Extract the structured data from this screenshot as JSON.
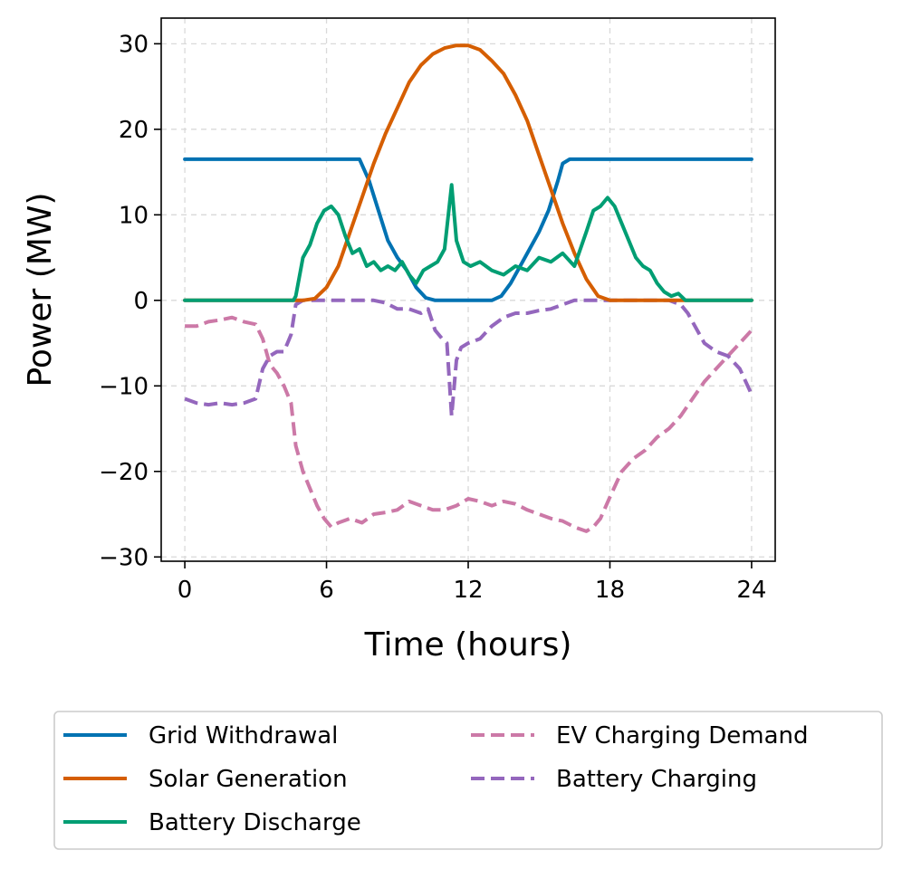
{
  "chart_data": {
    "type": "line",
    "title": "",
    "xlabel": "Time (hours)",
    "ylabel": "Power (MW)",
    "xlim": [
      -1,
      25
    ],
    "ylim": [
      -30.5,
      33
    ],
    "xticks": [
      0,
      6,
      12,
      18,
      24
    ],
    "yticks": [
      -30,
      -20,
      -10,
      0,
      10,
      20,
      30
    ],
    "xtick_labels": [
      "0",
      "6",
      "12",
      "18",
      "24"
    ],
    "ytick_labels": [
      "−30",
      "−20",
      "−10",
      "0",
      "10",
      "20",
      "30"
    ],
    "grid": true,
    "legend_position": "below",
    "series": [
      {
        "name": "Grid Withdrawal",
        "color": "#0072B2",
        "dash": "solid",
        "x": [
          0,
          7.4,
          7.8,
          8.2,
          8.6,
          9.0,
          9.4,
          9.8,
          10.2,
          10.6,
          11.0,
          11.5,
          12.0,
          12.5,
          13.0,
          13.4,
          13.8,
          14.2,
          14.6,
          15.0,
          15.4,
          15.8,
          16.0,
          16.3,
          24
        ],
        "y": [
          16.5,
          16.5,
          14.0,
          10.5,
          7.0,
          5.0,
          3.5,
          1.5,
          0.3,
          0,
          0,
          0,
          0,
          0,
          0,
          0.5,
          2.0,
          4.0,
          6.0,
          8.0,
          10.5,
          14.0,
          16.0,
          16.5,
          16.5
        ]
      },
      {
        "name": "Solar Generation",
        "color": "#D55E00",
        "dash": "solid",
        "x": [
          0,
          5.0,
          5.5,
          6.0,
          6.5,
          7.0,
          7.5,
          8.0,
          8.5,
          9.0,
          9.5,
          10.0,
          10.5,
          11.0,
          11.5,
          12.0,
          12.5,
          13.0,
          13.5,
          14.0,
          14.5,
          15.0,
          15.5,
          16.0,
          16.5,
          17.0,
          17.5,
          18.0,
          24
        ],
        "y": [
          0,
          0,
          0.2,
          1.5,
          4.0,
          8.0,
          12.0,
          16.0,
          19.5,
          22.5,
          25.5,
          27.5,
          28.8,
          29.5,
          29.8,
          29.8,
          29.3,
          28.0,
          26.5,
          24.0,
          21.0,
          17.0,
          13.0,
          9.0,
          5.5,
          2.5,
          0.5,
          0,
          0
        ]
      },
      {
        "name": "Battery Discharge",
        "color": "#009E73",
        "dash": "solid",
        "x": [
          0,
          4.6,
          4.7,
          5.0,
          5.3,
          5.6,
          5.9,
          6.2,
          6.5,
          6.8,
          7.1,
          7.4,
          7.7,
          8.0,
          8.3,
          8.6,
          8.9,
          9.2,
          9.5,
          9.8,
          10.1,
          10.4,
          10.7,
          11.0,
          11.3,
          11.5,
          11.8,
          12.1,
          12.5,
          13.0,
          13.5,
          14.0,
          14.5,
          15.0,
          15.5,
          16.0,
          16.5,
          17.0,
          17.3,
          17.6,
          17.9,
          18.2,
          18.5,
          18.8,
          19.1,
          19.4,
          19.7,
          20.0,
          20.3,
          20.6,
          20.9,
          21.2,
          24
        ],
        "y": [
          0,
          0,
          0.5,
          5.0,
          6.5,
          9.0,
          10.5,
          11.0,
          10.0,
          7.5,
          5.5,
          6.0,
          4.0,
          4.5,
          3.5,
          4.0,
          3.5,
          4.5,
          3.0,
          2.0,
          3.5,
          4.0,
          4.5,
          6.0,
          13.5,
          7.0,
          4.5,
          4.0,
          4.5,
          3.5,
          3.0,
          4.0,
          3.5,
          5.0,
          4.5,
          5.5,
          4.0,
          8.0,
          10.5,
          11.0,
          12.0,
          11.0,
          9.0,
          7.0,
          5.0,
          4.0,
          3.5,
          2.0,
          1.0,
          0.5,
          0.8,
          0,
          0
        ]
      },
      {
        "name": "EV Charging Demand",
        "color": "#CC79A7",
        "dash": "dashed",
        "x": [
          0,
          0.5,
          1.0,
          1.5,
          2.0,
          2.5,
          3.0,
          3.3,
          3.6,
          3.9,
          4.2,
          4.5,
          4.7,
          5.0,
          5.3,
          5.6,
          5.9,
          6.2,
          6.5,
          7.0,
          7.5,
          8.0,
          8.5,
          9.0,
          9.5,
          10.0,
          10.5,
          11.0,
          11.5,
          12.0,
          12.5,
          13.0,
          13.5,
          14.0,
          14.5,
          15.0,
          15.5,
          16.0,
          16.5,
          17.0,
          17.3,
          17.6,
          18.0,
          18.5,
          19.0,
          19.5,
          20.0,
          20.5,
          21.0,
          21.5,
          22.0,
          22.5,
          23.0,
          23.5,
          24.0
        ],
        "y": [
          -3.0,
          -3.0,
          -2.5,
          -2.3,
          -2.0,
          -2.5,
          -2.8,
          -4.5,
          -7.5,
          -8.5,
          -10.0,
          -12.0,
          -17.0,
          -20.0,
          -22.0,
          -24.0,
          -25.5,
          -26.5,
          -26.0,
          -25.5,
          -26.0,
          -25.0,
          -24.8,
          -24.5,
          -23.5,
          -24.0,
          -24.5,
          -24.5,
          -24.0,
          -23.2,
          -23.5,
          -24.0,
          -23.5,
          -23.8,
          -24.5,
          -25.0,
          -25.5,
          -25.8,
          -26.5,
          -27.0,
          -26.5,
          -25.5,
          -23.0,
          -20.0,
          -18.5,
          -17.5,
          -16.0,
          -15.0,
          -13.5,
          -11.5,
          -9.5,
          -8.0,
          -6.5,
          -5.0,
          -3.5
        ]
      },
      {
        "name": "Battery Charging",
        "color": "#9467BD",
        "dash": "dashed",
        "x": [
          0,
          0.5,
          1.0,
          1.5,
          2.0,
          2.5,
          3.0,
          3.3,
          3.6,
          3.9,
          4.2,
          4.5,
          4.7,
          5.0,
          5.5,
          6.0,
          6.5,
          7.0,
          7.5,
          8.0,
          8.5,
          9.0,
          9.5,
          10.0,
          10.3,
          10.6,
          10.9,
          11.1,
          11.3,
          11.5,
          11.7,
          12.0,
          12.5,
          13.0,
          13.5,
          14.0,
          14.5,
          15.0,
          15.5,
          16.0,
          16.5,
          17.0,
          18.0,
          19.0,
          20.0,
          20.5,
          21.0,
          21.3,
          21.6,
          22.0,
          22.5,
          23.0,
          23.5,
          24.0
        ],
        "y": [
          -11.5,
          -12.0,
          -12.2,
          -12.0,
          -12.2,
          -12.0,
          -11.5,
          -8.0,
          -6.5,
          -6.0,
          -6.0,
          -4.0,
          -0.5,
          0,
          0,
          0,
          0,
          0,
          0,
          0,
          -0.3,
          -1.0,
          -1.0,
          -1.5,
          -1.0,
          -3.5,
          -4.5,
          -5.0,
          -13.5,
          -7.0,
          -5.5,
          -5.0,
          -4.5,
          -3.0,
          -2.0,
          -1.5,
          -1.5,
          -1.2,
          -1.0,
          -0.5,
          0,
          0,
          0,
          0,
          0,
          0,
          -0.5,
          -1.5,
          -3.0,
          -5.0,
          -6.0,
          -6.5,
          -8.0,
          -11.0
        ]
      }
    ]
  }
}
